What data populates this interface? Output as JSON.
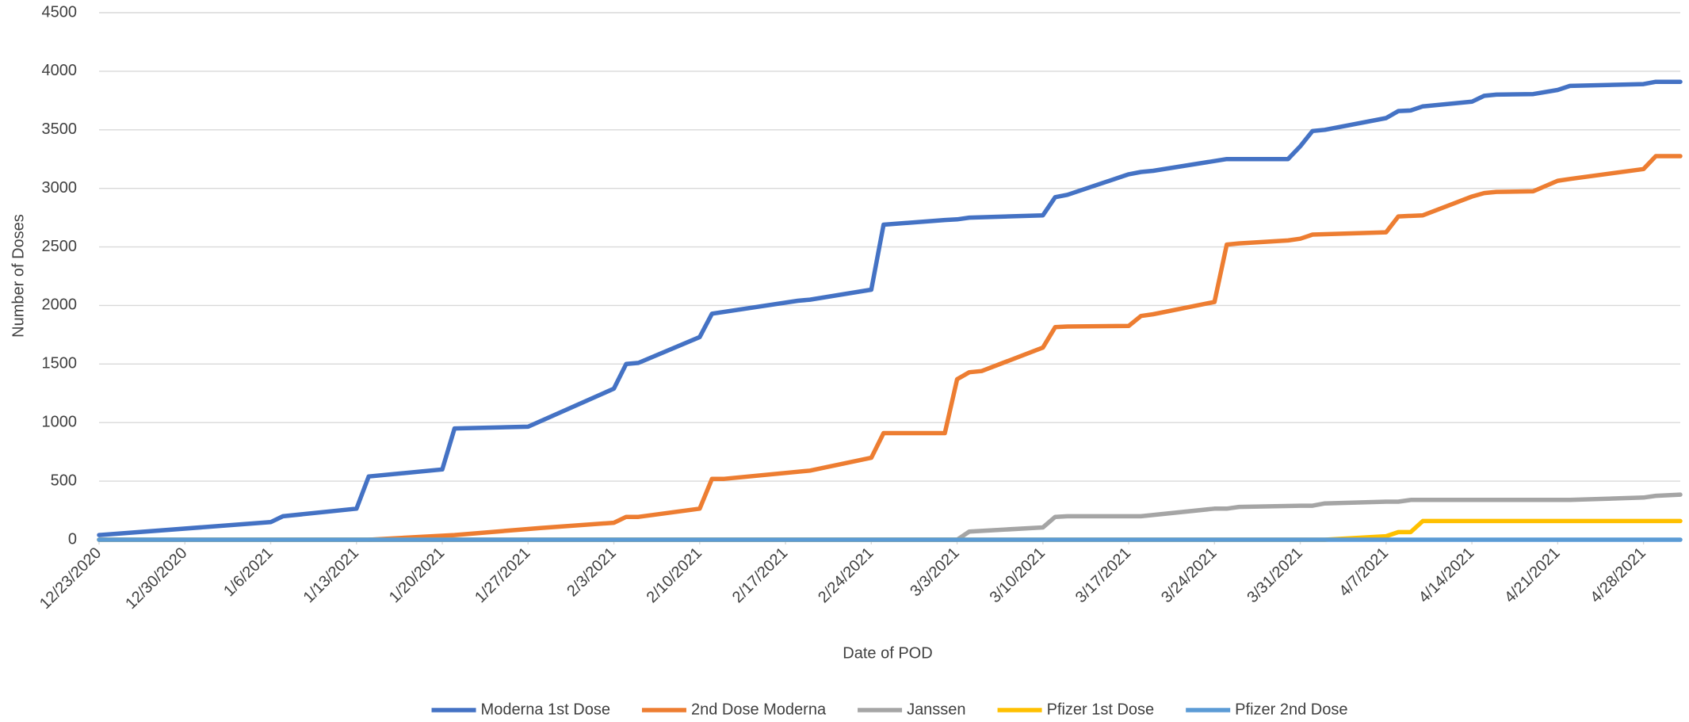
{
  "chart_data": {
    "type": "line",
    "x_label": "Date of POD",
    "y_label": "Number of Doses",
    "xlim": [
      "12/23/2020",
      "5/1/2021"
    ],
    "xticks": [
      "12/23/2020",
      "12/30/2020",
      "1/6/2021",
      "1/13/2021",
      "1/20/2021",
      "1/27/2021",
      "2/3/2021",
      "2/10/2021",
      "2/17/2021",
      "2/24/2021",
      "3/3/2021",
      "3/10/2021",
      "3/17/2021",
      "3/24/2021",
      "3/31/2021",
      "4/7/2021",
      "4/14/2021",
      "4/21/2021",
      "4/28/2021"
    ],
    "ylim": [
      0,
      4500
    ],
    "yticks": [
      0,
      500,
      1000,
      1500,
      2000,
      2500,
      3000,
      3500,
      4000,
      4500
    ],
    "grid": true,
    "legend": "bottom",
    "series": [
      {
        "name": "Moderna 1st Dose",
        "color": "#4472c4",
        "x": [
          "12/23/2020",
          "1/6/2021",
          "1/7/2021",
          "1/13/2021",
          "1/14/2021",
          "1/20/2021",
          "1/21/2021",
          "1/27/2021",
          "2/3/2021",
          "2/4/2021",
          "2/5/2021",
          "2/10/2021",
          "2/11/2021",
          "2/18/2021",
          "2/19/2021",
          "2/24/2021",
          "2/25/2021",
          "3/2/2021",
          "3/3/2021",
          "3/4/2021",
          "3/10/2021",
          "3/11/2021",
          "3/12/2021",
          "3/17/2021",
          "3/18/2021",
          "3/19/2021",
          "3/25/2021",
          "3/30/2021",
          "3/31/2021",
          "4/1/2021",
          "4/2/2021",
          "4/7/2021",
          "4/8/2021",
          "4/9/2021",
          "4/10/2021",
          "4/14/2021",
          "4/15/2021",
          "4/16/2021",
          "4/19/2021",
          "4/21/2021",
          "4/22/2021",
          "4/28/2021",
          "4/29/2021",
          "5/1/2021"
        ],
        "values": [
          40,
          150,
          200,
          265,
          540,
          600,
          950,
          965,
          1290,
          1500,
          1510,
          1730,
          1930,
          2040,
          2050,
          2135,
          2690,
          2730,
          2735,
          2750,
          2770,
          2925,
          2945,
          3120,
          3140,
          3150,
          3250,
          3250,
          3360,
          3490,
          3500,
          3600,
          3660,
          3665,
          3700,
          3740,
          3790,
          3800,
          3805,
          3840,
          3875,
          3890,
          3910,
          3910
        ]
      },
      {
        "name": "2nd Dose Moderna",
        "color": "#ed7d31",
        "x": [
          "1/14/2021",
          "1/21/2021",
          "1/28/2021",
          "2/3/2021",
          "2/4/2021",
          "2/5/2021",
          "2/10/2021",
          "2/11/2021",
          "2/12/2021",
          "2/19/2021",
          "2/24/2021",
          "2/25/2021",
          "3/2/2021",
          "3/3/2021",
          "3/4/2021",
          "3/5/2021",
          "3/10/2021",
          "3/11/2021",
          "3/12/2021",
          "3/17/2021",
          "3/18/2021",
          "3/19/2021",
          "3/24/2021",
          "3/25/2021",
          "3/26/2021",
          "3/30/2021",
          "3/31/2021",
          "4/1/2021",
          "4/7/2021",
          "4/8/2021",
          "4/10/2021",
          "4/14/2021",
          "4/15/2021",
          "4/16/2021",
          "4/19/2021",
          "4/21/2021",
          "4/22/2021",
          "4/28/2021",
          "4/29/2021",
          "5/1/2021"
        ],
        "values": [
          0,
          40,
          100,
          145,
          195,
          195,
          265,
          520,
          520,
          590,
          700,
          910,
          910,
          1370,
          1430,
          1440,
          1640,
          1815,
          1820,
          1825,
          1910,
          1925,
          2030,
          2520,
          2530,
          2555,
          2570,
          2605,
          2625,
          2760,
          2770,
          2930,
          2960,
          2970,
          2975,
          3065,
          3080,
          3165,
          3275,
          3275
        ]
      },
      {
        "name": "Janssen",
        "color": "#a5a5a5",
        "x": [
          "12/23/2020",
          "3/3/2021",
          "3/4/2021",
          "3/10/2021",
          "3/11/2021",
          "3/12/2021",
          "3/18/2021",
          "3/24/2021",
          "3/25/2021",
          "3/26/2021",
          "3/31/2021",
          "4/1/2021",
          "4/2/2021",
          "4/7/2021",
          "4/8/2021",
          "4/9/2021",
          "4/22/2021",
          "4/28/2021",
          "4/29/2021",
          "5/1/2021"
        ],
        "values": [
          0,
          0,
          70,
          105,
          195,
          200,
          200,
          265,
          265,
          280,
          290,
          290,
          310,
          325,
          325,
          340,
          340,
          360,
          375,
          385
        ]
      },
      {
        "name": "Pfizer 1st Dose",
        "color": "#ffc000",
        "x": [
          "12/23/2020",
          "4/2/2021",
          "4/7/2021",
          "4/8/2021",
          "4/9/2021",
          "4/10/2021",
          "5/1/2021"
        ],
        "values": [
          0,
          0,
          30,
          65,
          65,
          160,
          160
        ]
      },
      {
        "name": "Pfizer 2nd Dose",
        "color": "#5b9bd5",
        "x": [
          "12/23/2020",
          "5/1/2021"
        ],
        "values": [
          0,
          0
        ]
      }
    ]
  }
}
